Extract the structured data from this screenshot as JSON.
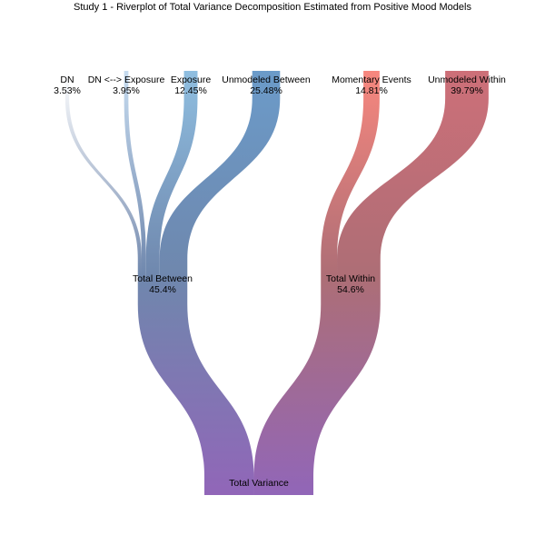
{
  "title": "Study 1 - Riverplot of Total Variance Decomposition Estimated from Positive Mood Models",
  "chart_data": {
    "type": "sankey",
    "title": "Study 1 - Riverplot of Total Variance Decomposition Estimated from Positive Mood Models",
    "nodes": [
      {
        "id": "dn",
        "label": "DN",
        "value_label": "3.53%",
        "value": 3.53,
        "color": "#ffffff"
      },
      {
        "id": "dnx",
        "label": "DN <--> Exposure",
        "value_label": "3.95%",
        "value": 3.95,
        "color": "#c6dbef"
      },
      {
        "id": "exp",
        "label": "Exposure",
        "value_label": "12.45%",
        "value": 12.45,
        "color": "#8fbee0"
      },
      {
        "id": "ub",
        "label": "Unmodeled Between",
        "value_label": "25.48%",
        "value": 25.48,
        "color": "#6b9bc9"
      },
      {
        "id": "me",
        "label": "Momentary Events",
        "value_label": "14.81%",
        "value": 14.81,
        "color": "#f7877e"
      },
      {
        "id": "uw",
        "label": "Unmodeled Within",
        "value_label": "39.79%",
        "value": 39.79,
        "color": "#cd6f78"
      },
      {
        "id": "tb",
        "label": "Total Between",
        "value_label": "45.4%",
        "value": 45.4,
        "color": "#6f87ad"
      },
      {
        "id": "tw",
        "label": "Total Within",
        "value_label": "54.6%",
        "value": 54.6,
        "color": "#ad6e76"
      },
      {
        "id": "tv",
        "label": "Total Variance",
        "value_label": "",
        "value": 100,
        "color": "#9166b8"
      }
    ],
    "links": [
      {
        "source": "dn",
        "target": "tb",
        "value": 3.53
      },
      {
        "source": "dnx",
        "target": "tb",
        "value": 3.95
      },
      {
        "source": "exp",
        "target": "tb",
        "value": 12.45
      },
      {
        "source": "ub",
        "target": "tb",
        "value": 25.48
      },
      {
        "source": "me",
        "target": "tw",
        "value": 14.81
      },
      {
        "source": "uw",
        "target": "tw",
        "value": 39.79
      },
      {
        "source": "tb",
        "target": "tv",
        "value": 45.4
      },
      {
        "source": "tw",
        "target": "tv",
        "value": 54.6
      }
    ]
  }
}
